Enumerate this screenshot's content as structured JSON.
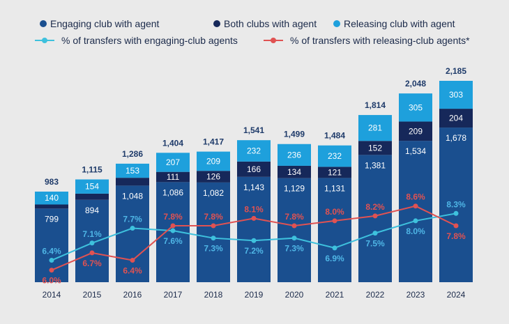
{
  "colors": {
    "background": "#eaeaea",
    "engaging": "#1a4f8f",
    "both": "#16285a",
    "releasing": "#1ea0dc",
    "engaging_line": "#3ec1dd",
    "releasing_line": "#e05252",
    "text": "#1b2a4a"
  },
  "legend": {
    "engaging": "Engaging club with agent",
    "both": "Both clubs with agent",
    "releasing": "Releasing club with agent",
    "engaging_line": "% of transfers with engaging-club agents",
    "releasing_line": "% of transfers with releasing-club agents*"
  },
  "chart_data": {
    "type": "bar",
    "stacked": true,
    "categories": [
      "2014",
      "2015",
      "2016",
      "2017",
      "2018",
      "2019",
      "2020",
      "2021",
      "2022",
      "2023",
      "2024"
    ],
    "series": [
      {
        "name": "Engaging club with agent",
        "values": [
          799,
          894,
          1048,
          1086,
          1082,
          1143,
          1129,
          1131,
          1381,
          1534,
          1678
        ]
      },
      {
        "name": "Both clubs with agent",
        "values": [
          44,
          67,
          85,
          111,
          126,
          166,
          134,
          121,
          152,
          209,
          204
        ]
      },
      {
        "name": "Releasing club with agent",
        "values": [
          140,
          154,
          153,
          207,
          209,
          232,
          236,
          232,
          281,
          305,
          303
        ]
      }
    ],
    "segment_labels": {
      "engaging": [
        "799",
        "894",
        "1,048",
        "1,086",
        "1,082",
        "1,143",
        "1,129",
        "1,131",
        "1,381",
        "1,534",
        "1,678"
      ],
      "both": [
        "",
        "",
        "",
        "111",
        "126",
        "166",
        "134",
        "121",
        "152",
        "209",
        "204"
      ],
      "releasing": [
        "140",
        "154",
        "153",
        "207",
        "209",
        "232",
        "236",
        "232",
        "281",
        "305",
        "303"
      ]
    },
    "totals": [
      983,
      1115,
      1286,
      1404,
      1417,
      1541,
      1499,
      1484,
      1814,
      2048,
      2185
    ],
    "total_labels": [
      "983",
      "1,115",
      "1,286",
      "1,404",
      "1,417",
      "1,541",
      "1,499",
      "1,484",
      "1,814",
      "2,048",
      "2,185"
    ],
    "lines": [
      {
        "name": "% of transfers with engaging-club agents",
        "values": [
          6.4,
          7.1,
          7.7,
          7.6,
          7.3,
          7.2,
          7.3,
          6.9,
          7.5,
          8.0,
          8.3
        ],
        "labels": [
          "6.4%",
          "7.1%",
          "7.7%",
          "7.6%",
          "7.3%",
          "7.2%",
          "7.3%",
          "6.9%",
          "7.5%",
          "8.0%",
          "8.3%"
        ]
      },
      {
        "name": "% of transfers with releasing-club agents*",
        "values": [
          6.0,
          6.7,
          6.4,
          7.8,
          7.8,
          8.1,
          7.8,
          8.0,
          8.2,
          8.6,
          7.8
        ],
        "labels": [
          "6.0%",
          "6.7%",
          "6.4%",
          "7.8%",
          "7.8%",
          "8.1%",
          "7.8%",
          "8.0%",
          "8.2%",
          "8.6%",
          "7.8%"
        ]
      }
    ],
    "ylim": [
      0,
      2185
    ],
    "line_ylim": [
      5.85,
      9.1
    ],
    "grid": false,
    "legend_position": "top"
  }
}
